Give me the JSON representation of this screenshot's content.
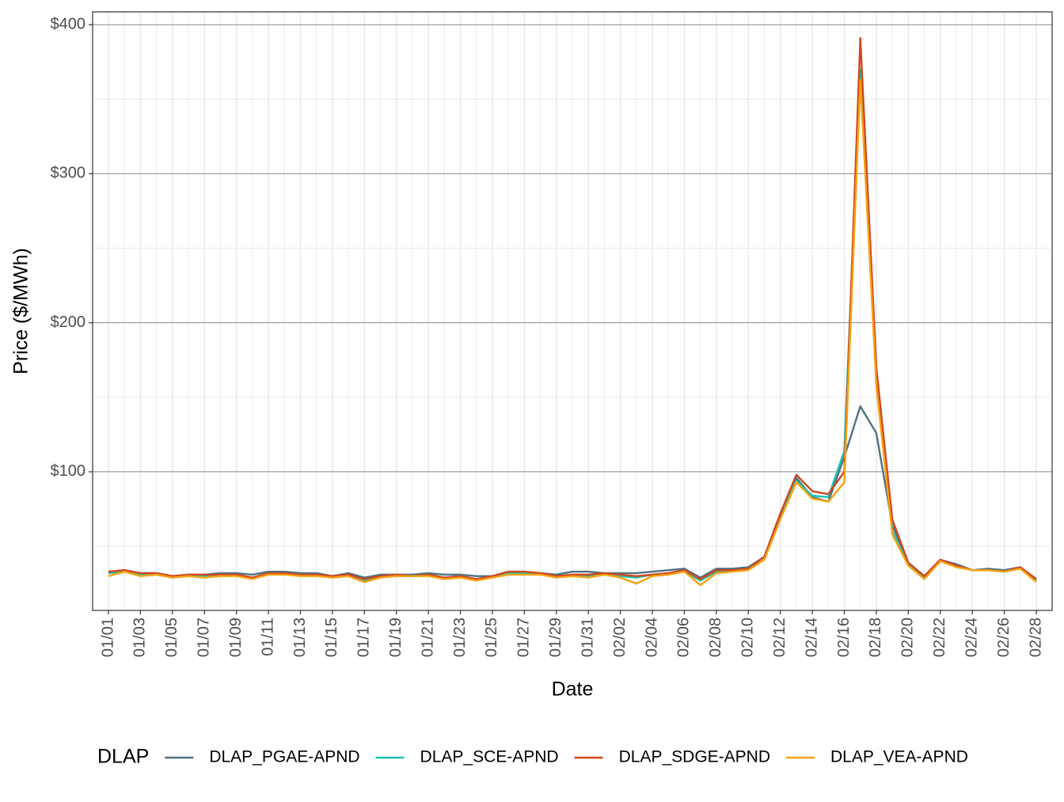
{
  "chart_data": {
    "type": "line",
    "x_label": "Date",
    "y_label": "Price ($/MWh)",
    "legend_title": "DLAP",
    "legend_position": "bottom",
    "grid": true,
    "categories": [
      "01/01",
      null,
      "01/03",
      null,
      "01/05",
      null,
      "01/07",
      null,
      "01/09",
      null,
      "01/11",
      null,
      "01/13",
      null,
      "01/15",
      null,
      "01/17",
      null,
      "01/19",
      null,
      "01/21",
      null,
      "01/23",
      null,
      "01/25",
      null,
      "01/27",
      null,
      "01/29",
      null,
      "01/31",
      null,
      "02/02",
      null,
      "02/04",
      null,
      "02/06",
      null,
      "02/08",
      null,
      "02/10",
      null,
      "02/12",
      null,
      "02/14",
      null,
      "02/16",
      null,
      "02/18",
      null,
      "02/20",
      null,
      "02/22",
      null,
      "02/24",
      null,
      "02/26",
      null,
      "02/28"
    ],
    "ylim": [
      7,
      408.6
    ],
    "yticks": [
      {
        "value": 100,
        "label": "$100"
      },
      {
        "value": 200,
        "label": "$200"
      },
      {
        "value": 300,
        "label": "$300"
      },
      {
        "value": 400,
        "label": "$400"
      }
    ],
    "series": [
      {
        "name": "DLAP_PGAE-APND",
        "color": "#4e7383",
        "values": [
          33,
          34,
          32,
          32,
          30,
          31,
          31,
          32,
          32,
          31,
          33,
          33,
          32,
          32,
          30,
          32,
          29,
          31,
          31,
          31,
          32,
          31,
          31,
          30,
          30,
          33,
          33,
          32,
          31,
          33,
          33,
          32,
          32,
          32,
          33,
          34,
          35,
          29,
          35,
          35,
          36,
          43,
          70,
          96,
          83,
          80,
          110,
          144,
          126,
          64,
          39,
          30,
          41,
          38,
          34,
          35,
          34,
          36,
          28
        ]
      },
      {
        "name": "DLAP_SCE-APND",
        "color": "#19c3b2",
        "values": [
          32,
          33,
          31,
          31,
          29,
          30,
          30,
          31,
          31,
          29,
          32,
          32,
          31,
          31,
          29,
          30,
          27,
          30,
          30,
          30,
          31,
          29,
          30,
          28,
          29,
          32,
          32,
          32,
          30,
          31,
          30,
          32,
          30,
          29,
          31,
          32,
          33,
          27,
          33,
          34,
          35,
          43,
          72,
          94,
          84,
          83,
          114,
          370,
          165,
          60,
          38,
          29,
          41,
          37,
          34,
          34,
          33,
          35,
          27
        ]
      },
      {
        "name": "DLAP_SDGE-APND",
        "color": "#d2461e",
        "values": [
          33,
          34,
          32,
          32,
          30,
          31,
          31,
          31,
          31,
          29,
          32,
          32,
          31,
          31,
          30,
          31,
          28,
          30,
          31,
          30,
          31,
          29,
          30,
          28,
          30,
          33,
          33,
          32,
          30,
          31,
          31,
          32,
          31,
          30,
          31,
          32,
          34,
          28,
          34,
          34,
          35,
          43,
          72,
          98,
          87,
          85,
          100,
          391,
          170,
          68,
          39,
          30,
          41,
          37,
          34,
          34,
          33,
          36,
          28
        ]
      },
      {
        "name": "DLAP_VEA-APND",
        "color": "#f7a30f",
        "values": [
          30,
          33,
          30,
          31,
          29,
          30,
          29,
          30,
          30,
          28,
          31,
          31,
          30,
          30,
          29,
          30,
          26,
          29,
          30,
          30,
          30,
          28,
          29,
          27,
          29,
          31,
          31,
          31,
          29,
          30,
          29,
          31,
          29,
          25,
          30,
          31,
          33,
          24,
          32,
          33,
          34,
          41,
          68,
          93,
          82,
          80,
          93,
          363,
          158,
          58,
          37,
          28,
          40,
          36,
          34,
          34,
          33,
          35,
          26
        ]
      }
    ]
  }
}
